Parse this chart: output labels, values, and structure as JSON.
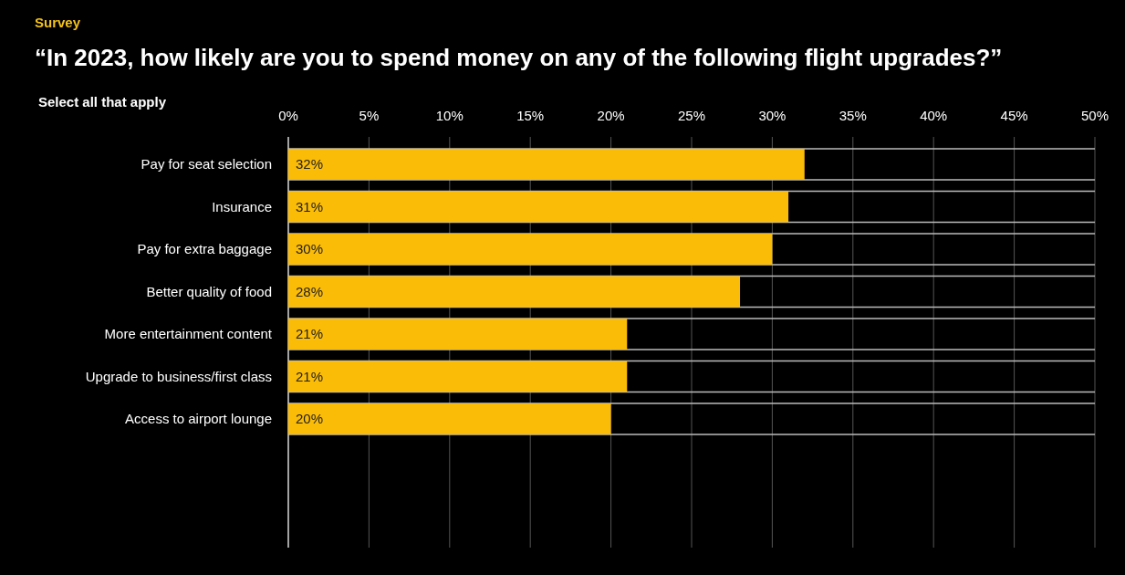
{
  "chart_data": {
    "type": "bar",
    "orientation": "horizontal",
    "title": "“In 2023, how likely are you to spend money on any of the following flight upgrades?”",
    "subtitle": "Select all that apply",
    "annotations": [
      "Survey"
    ],
    "categories": [
      "Pay for seat selection",
      "Insurance",
      "Pay for extra baggage",
      "Better quality of food",
      "More entertainment content",
      "Upgrade to business/first class",
      "Access to airport lounge"
    ],
    "values": [
      32,
      31,
      30,
      28,
      21,
      21,
      20
    ],
    "value_labels": [
      "32%",
      "31%",
      "30%",
      "28%",
      "21%",
      "21%",
      "20%"
    ],
    "color": "#fbbc08",
    "xlim": [
      0,
      50
    ],
    "xticks": [
      {
        "value": 0,
        "label": "0%"
      },
      {
        "value": 5,
        "label": "5%"
      },
      {
        "value": 10,
        "label": "10%"
      },
      {
        "value": 15,
        "label": "15%"
      },
      {
        "value": 20,
        "label": "20%"
      },
      {
        "value": 25,
        "label": "25%"
      },
      {
        "value": 30,
        "label": "30%"
      },
      {
        "value": 35,
        "label": "35%"
      },
      {
        "value": 40,
        "label": "40%"
      },
      {
        "value": 45,
        "label": "45%"
      },
      {
        "value": 50,
        "label": "50%"
      }
    ],
    "grid": "x"
  }
}
